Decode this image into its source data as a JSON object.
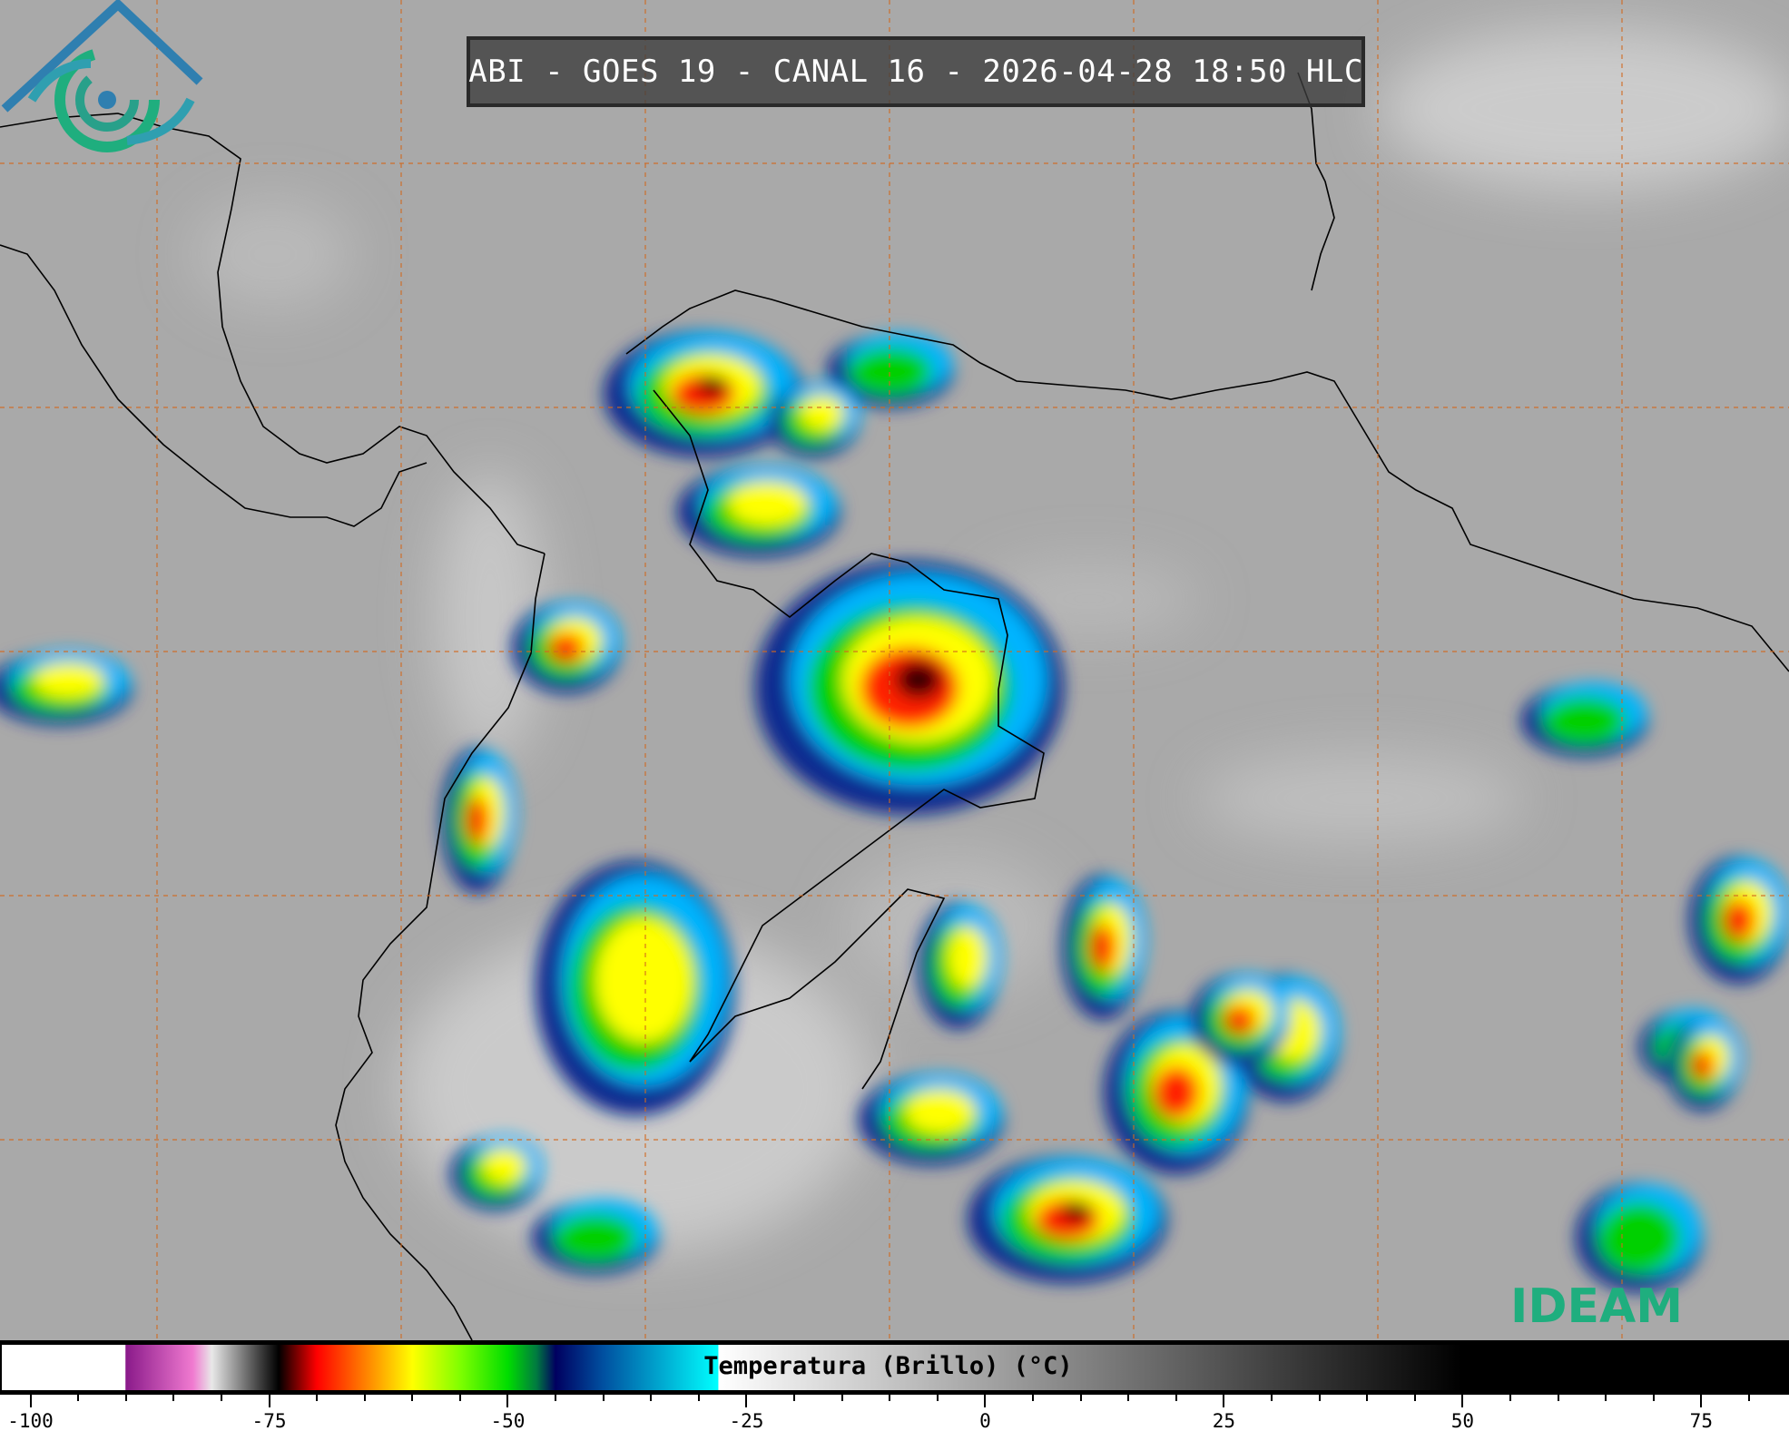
{
  "title": "ABI - GOES 19 - CANAL 16 - 2026-04-28 18:50 HLC",
  "logo": {
    "text": "IDEAM",
    "color": "#1fae7e",
    "mark_color": "#2f7fb0"
  },
  "colorbar": {
    "label": "Temperatura (Brillo) (°C)",
    "range": [
      -103,
      84
    ],
    "major_ticks": [
      -100,
      -75,
      -50,
      -25,
      0,
      25,
      50,
      75
    ],
    "tick_labels": [
      "-100",
      "-75",
      "-50",
      "-25",
      "0",
      "25",
      "50",
      "75"
    ],
    "minor_tick_step": 5,
    "stops": [
      {
        "t": -103,
        "color": "#ffffff"
      },
      {
        "t": -90.1,
        "color": "#ffffff"
      },
      {
        "t": -90,
        "color": "#8a1a8a"
      },
      {
        "t": -83,
        "color": "#f07ad0"
      },
      {
        "t": -81,
        "color": "#e8e8e8"
      },
      {
        "t": -76,
        "color": "#404040"
      },
      {
        "t": -74,
        "color": "#000000"
      },
      {
        "t": -70,
        "color": "#ff0000"
      },
      {
        "t": -65,
        "color": "#ff7f00"
      },
      {
        "t": -60,
        "color": "#ffff00"
      },
      {
        "t": -55,
        "color": "#7fff00"
      },
      {
        "t": -50,
        "color": "#00dd00"
      },
      {
        "t": -47,
        "color": "#007a40"
      },
      {
        "t": -45,
        "color": "#000060"
      },
      {
        "t": -40,
        "color": "#0050a0"
      },
      {
        "t": -28,
        "color": "#00ffff"
      },
      {
        "t": -27.9,
        "color": "#ffffff"
      },
      {
        "t": 50,
        "color": "#000000"
      },
      {
        "t": 84,
        "color": "#000000"
      }
    ]
  },
  "map": {
    "background_color": "#a9a9a9",
    "grid_color": "#d2691e",
    "border_color": "#000000"
  }
}
